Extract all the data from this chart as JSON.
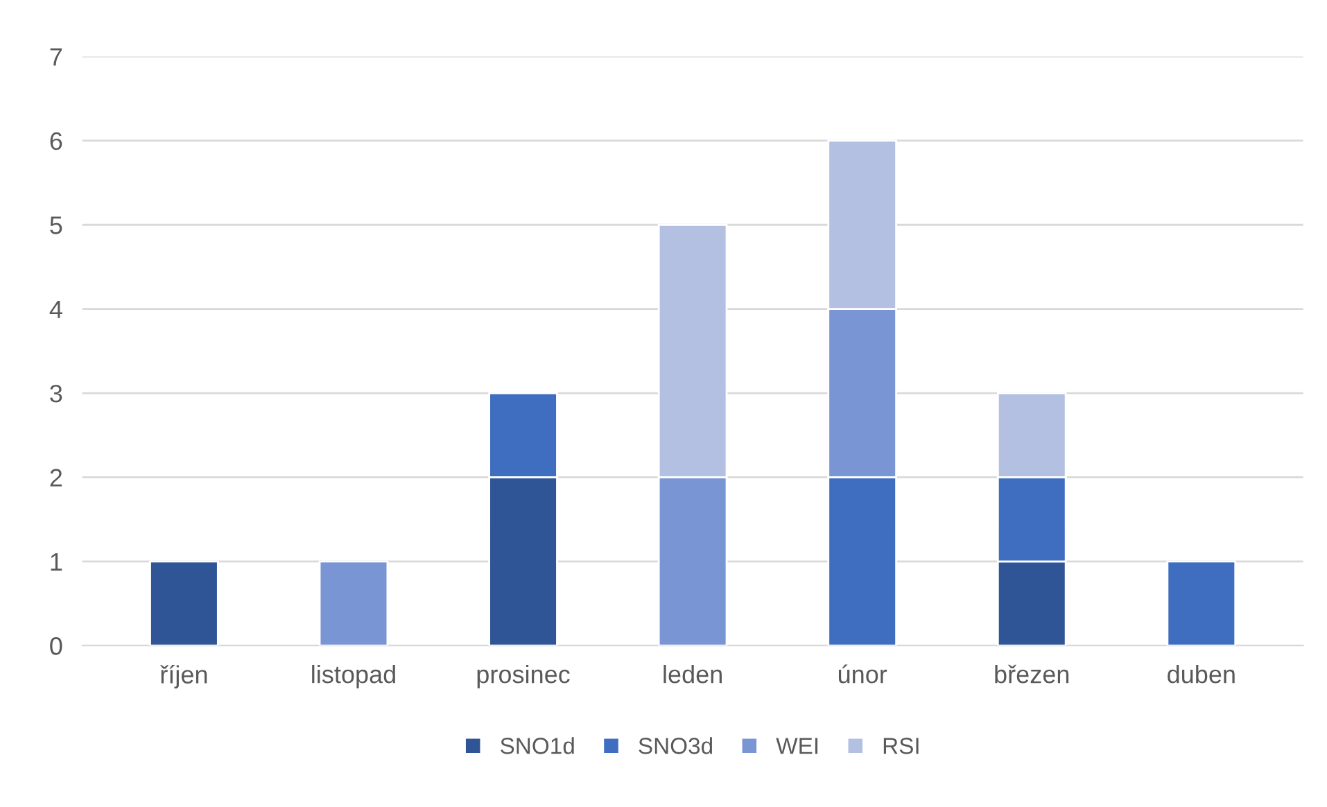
{
  "chart_data": {
    "type": "bar",
    "stacked": true,
    "categories": [
      "říjen",
      "listopad",
      "prosinec",
      "leden",
      "únor",
      "březen",
      "duben"
    ],
    "series": [
      {
        "name": "SNO1d",
        "color": "#2f5597",
        "values": [
          1,
          null,
          2,
          null,
          null,
          1,
          null
        ]
      },
      {
        "name": "SNO3d",
        "color": "#3f6dbf",
        "values": [
          null,
          null,
          1,
          null,
          2,
          1,
          1
        ]
      },
      {
        "name": "WEI",
        "color": "#7a95d3",
        "values": [
          null,
          1,
          null,
          2,
          2,
          null,
          null
        ]
      },
      {
        "name": "RSI",
        "color": "#b3c0e1",
        "values": [
          null,
          null,
          null,
          3,
          2,
          1,
          null
        ]
      }
    ],
    "ylim": [
      0,
      7
    ],
    "yticks": [
      0,
      1,
      2,
      3,
      4,
      5,
      6,
      7
    ],
    "grid": "y",
    "legend": "bottom"
  }
}
